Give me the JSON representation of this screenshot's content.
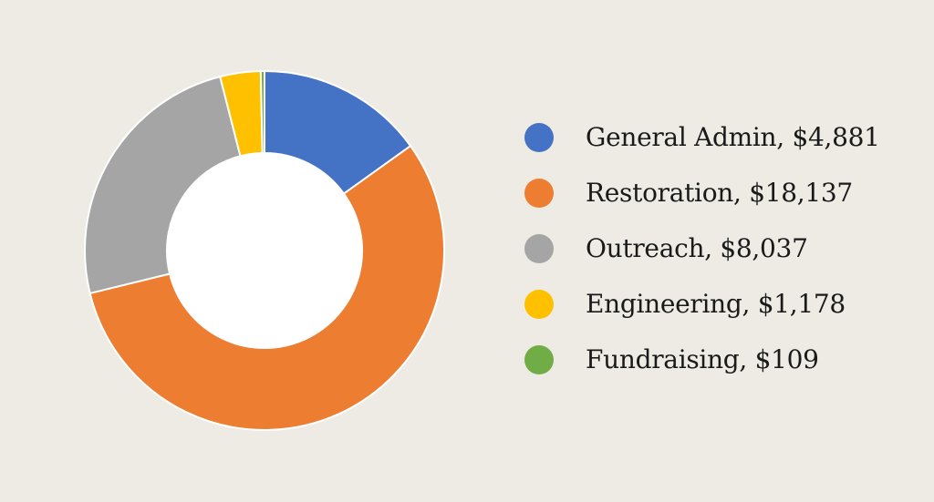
{
  "chart_data": {
    "type": "pie",
    "donut": true,
    "legend_position": "right",
    "series": [
      {
        "name": "General Admin",
        "value": 4881,
        "label": "General Admin, $4,881",
        "color": "#4472c4"
      },
      {
        "name": "Restoration",
        "value": 18137,
        "label": "Restoration, $18,137",
        "color": "#ed7d31"
      },
      {
        "name": "Outreach",
        "value": 8037,
        "label": "Outreach, $8,037",
        "color": "#a5a5a5"
      },
      {
        "name": "Engineering",
        "value": 1178,
        "label": "Engineering, $1,178",
        "color": "#ffc000"
      },
      {
        "name": "Fundraising",
        "value": 109,
        "label": "Fundraising, $109",
        "color": "#70ad47"
      }
    ]
  }
}
